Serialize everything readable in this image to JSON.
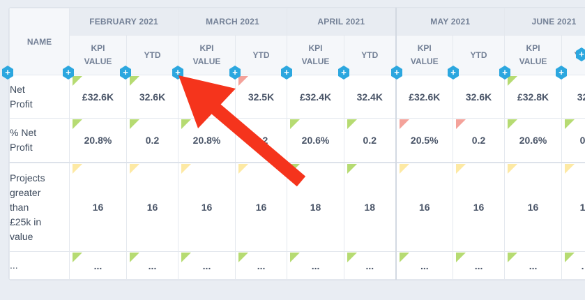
{
  "header": {
    "name_col": "NAME",
    "months": [
      "FEBRUARY 2021",
      "MARCH 2021",
      "APRIL 2021",
      "MAY 2021",
      "JUNE 2021"
    ],
    "sub_kpi": "KPI\nVALUE",
    "sub_ytd": "YTD"
  },
  "rows": [
    {
      "label": "Net\nProfit",
      "cells": [
        "£32.6K",
        "32.6K",
        "",
        "32.5K",
        "£32.4K",
        "32.4K",
        "£32.6K",
        "32.6K",
        "£32.8K",
        "32"
      ],
      "flags": [
        "g",
        "g",
        "",
        "r",
        "",
        "",
        "",
        "",
        "g",
        ""
      ]
    },
    {
      "label": "% Net\nProfit",
      "cells": [
        "20.8%",
        "0.2",
        "20.8%",
        "0.2",
        "20.6%",
        "0.2",
        "20.5%",
        "0.2",
        "20.6%",
        "0"
      ],
      "flags": [
        "g",
        "g",
        "g",
        "",
        "g",
        "g",
        "r",
        "r",
        "g",
        "g"
      ]
    },
    {
      "label": "Projects\ngreater\nthan\n£25k in\nvalue",
      "cells": [
        "16",
        "16",
        "16",
        "16",
        "18",
        "18",
        "16",
        "16",
        "16",
        "1"
      ],
      "flags": [
        "y",
        "y",
        "y",
        "y",
        "g",
        "g",
        "y",
        "y",
        "y",
        "y"
      ]
    },
    {
      "label": "...",
      "cells": [
        "...",
        "...",
        "...",
        "...",
        "...",
        "...",
        "...",
        "...",
        "...",
        "."
      ],
      "flags": [
        "g",
        "g",
        "g",
        "g",
        "g",
        "g",
        "g",
        "g",
        "g",
        "g"
      ]
    }
  ],
  "buttons": {
    "plus_glyph": "+"
  },
  "colors": {
    "flag_green": "#b6db72",
    "flag_yellow": "#fde9a4",
    "flag_red": "#f4a29a",
    "arrow": "#f5341c",
    "plus": "#2ca7df"
  }
}
